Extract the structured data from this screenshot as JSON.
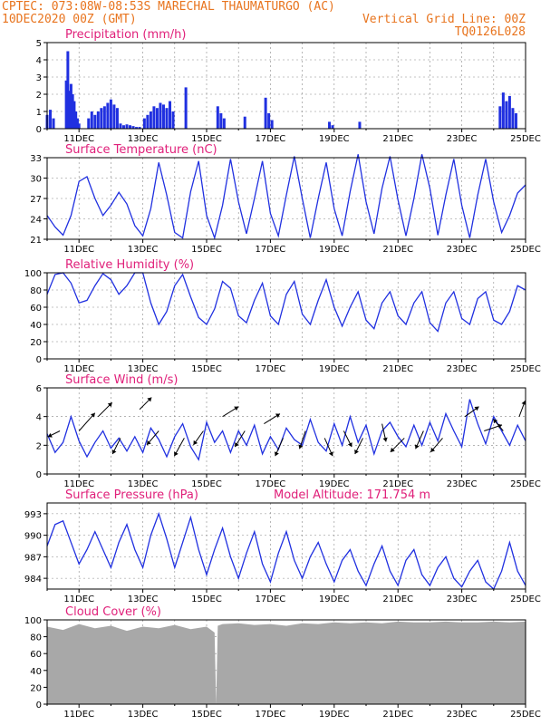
{
  "header": {
    "line1_left": "CPTEC:   073:08W-08:53S  MARECHAL THAUMATURGO (AC)",
    "line2_left": "10DEC2020 00Z (GMT)",
    "line2_right": "Vertical Grid Line: 00Z",
    "line3_right": "TQ0126L028"
  },
  "colors": {
    "header": "#e8741e",
    "title": "#e0207a",
    "series": "#2030e0",
    "cloud": "#a8a8a8",
    "grid": "#888888"
  },
  "chart_data": [
    {
      "type": "bar",
      "title": "Precipitation (mm/h)",
      "ylim": [
        0,
        5
      ],
      "yticks": [
        "0",
        "1",
        "2",
        "3",
        "4",
        "5"
      ],
      "xticks": [
        "11DEC",
        "13DEC",
        "15DEC",
        "17DEC",
        "19DEC",
        "21DEC",
        "23DEC",
        "25DEC"
      ],
      "series": [
        {
          "x": [
            0.0,
            0.1,
            0.2,
            0.3,
            0.4,
            0.5,
            0.6,
            0.7,
            0.8
          ],
          "values": [
            0.8,
            1.1,
            0.6,
            0,
            0,
            0,
            0,
            0,
            0
          ]
        },
        {
          "x": [
            0.6,
            0.65,
            0.7,
            0.75,
            0.8,
            0.85,
            0.9,
            0.95,
            1.0
          ],
          "values": [
            2.8,
            4.5,
            2.2,
            2.6,
            2.0,
            1.6,
            1.0,
            0.6,
            0.3
          ]
        },
        {
          "x": [
            1.3,
            1.4,
            1.5,
            1.6,
            1.7,
            1.8,
            1.9,
            2.0,
            2.1,
            2.2
          ],
          "values": [
            0.6,
            1.0,
            0.8,
            1.0,
            1.2,
            1.3,
            1.5,
            1.7,
            1.4,
            1.2
          ]
        },
        {
          "x": [
            2.3,
            2.4,
            2.5,
            2.6,
            2.7,
            2.8,
            2.9
          ],
          "values": [
            0.3,
            0.2,
            0.25,
            0.2,
            0.15,
            0.1,
            0.1
          ]
        },
        {
          "x": [
            3.05,
            3.15,
            3.25,
            3.35,
            3.45,
            3.55,
            3.65,
            3.75,
            3.85,
            3.95
          ],
          "values": [
            0.6,
            0.8,
            1.0,
            1.3,
            1.2,
            1.5,
            1.4,
            1.2,
            1.6,
            1.0
          ]
        },
        {
          "x": [
            4.35
          ],
          "values": [
            2.4
          ]
        },
        {
          "x": [
            5.35,
            5.45,
            5.55
          ],
          "values": [
            1.3,
            0.9,
            0.6
          ]
        },
        {
          "x": [
            6.2
          ],
          "values": [
            0.7
          ]
        },
        {
          "x": [
            6.85,
            6.95,
            7.05
          ],
          "values": [
            1.8,
            0.9,
            0.5
          ]
        },
        {
          "x": [
            8.85,
            8.95
          ],
          "values": [
            0.4,
            0.2
          ]
        },
        {
          "x": [
            9.8
          ],
          "values": [
            0.4
          ]
        },
        {
          "x": [
            14.2,
            14.3,
            14.4,
            14.5,
            14.6,
            14.7
          ],
          "values": [
            1.3,
            2.1,
            1.6,
            1.9,
            1.2,
            0.9
          ]
        }
      ]
    },
    {
      "type": "line",
      "title": "Surface Temperature (nC)",
      "ylim": [
        21,
        33
      ],
      "yticks": [
        "21",
        "24",
        "27",
        "30",
        "33"
      ],
      "xticks": [
        "11DEC",
        "13DEC",
        "15DEC",
        "17DEC",
        "19DEC",
        "21DEC",
        "23DEC",
        "25DEC"
      ],
      "x": [
        0.0,
        0.25,
        0.5,
        0.75,
        1.0,
        1.25,
        1.5,
        1.75,
        2.0,
        2.25,
        2.5,
        2.75,
        3.0,
        3.25,
        3.5,
        3.75,
        4.0,
        4.25,
        4.5,
        4.75,
        5.0,
        5.25,
        5.5,
        5.75,
        6.0,
        6.25,
        6.5,
        6.75,
        7.0,
        7.25,
        7.5,
        7.75,
        8.0,
        8.25,
        8.5,
        8.75,
        9.0,
        9.25,
        9.5,
        9.75,
        10.0,
        10.25,
        10.5,
        10.75,
        11.0,
        11.25,
        11.5,
        11.75,
        12.0,
        12.25,
        12.5,
        12.75,
        13.0,
        13.25,
        13.5,
        13.75,
        14.0,
        14.25,
        14.5,
        14.75,
        15.0
      ],
      "series": [
        {
          "values": [
            24.5,
            22.8,
            21.6,
            24.5,
            29.5,
            30.2,
            27.0,
            24.5,
            26.0,
            27.9,
            26.2,
            23.0,
            21.5,
            25.5,
            32.3,
            27.5,
            22.0,
            21.2,
            28.0,
            32.5,
            24.5,
            21.2,
            26.0,
            32.8,
            26.5,
            21.8,
            27.0,
            32.5,
            24.8,
            21.5,
            27.5,
            33.2,
            27.0,
            21.2,
            27.0,
            32.3,
            25.5,
            21.5,
            28.0,
            33.5,
            26.5,
            21.8,
            28.5,
            33.2,
            26.8,
            21.5,
            27.0,
            33.5,
            28.5,
            21.6,
            27.5,
            32.8,
            26.0,
            21.2,
            27.5,
            32.8,
            26.5,
            22.0,
            24.5,
            27.8,
            29.0
          ]
        }
      ]
    },
    {
      "type": "line",
      "title": "Relative Humidity (%)",
      "ylim": [
        0,
        100
      ],
      "yticks": [
        "0",
        "20",
        "40",
        "60",
        "80",
        "100"
      ],
      "xticks": [
        "11DEC",
        "13DEC",
        "15DEC",
        "17DEC",
        "19DEC",
        "21DEC",
        "23DEC",
        "25DEC"
      ],
      "x": [
        0.0,
        0.25,
        0.5,
        0.75,
        1.0,
        1.25,
        1.5,
        1.75,
        2.0,
        2.25,
        2.5,
        2.75,
        3.0,
        3.25,
        3.5,
        3.75,
        4.0,
        4.25,
        4.5,
        4.75,
        5.0,
        5.25,
        5.5,
        5.75,
        6.0,
        6.25,
        6.5,
        6.75,
        7.0,
        7.25,
        7.5,
        7.75,
        8.0,
        8.25,
        8.5,
        8.75,
        9.0,
        9.25,
        9.5,
        9.75,
        10.0,
        10.25,
        10.5,
        10.75,
        11.0,
        11.25,
        11.5,
        11.75,
        12.0,
        12.25,
        12.5,
        12.75,
        13.0,
        13.25,
        13.5,
        13.75,
        14.0,
        14.25,
        14.5,
        14.75,
        15.0
      ],
      "series": [
        {
          "values": [
            75,
            98,
            100,
            88,
            65,
            68,
            85,
            99,
            92,
            75,
            85,
            100,
            100,
            65,
            40,
            55,
            85,
            98,
            72,
            48,
            40,
            58,
            90,
            82,
            50,
            42,
            68,
            88,
            50,
            40,
            75,
            90,
            52,
            40,
            68,
            92,
            60,
            38,
            60,
            78,
            45,
            35,
            65,
            78,
            50,
            40,
            65,
            78,
            42,
            32,
            65,
            78,
            47,
            40,
            70,
            78,
            45,
            40,
            55,
            85,
            80
          ]
        }
      ]
    },
    {
      "type": "line",
      "title": "Surface Wind (m/s)",
      "ylim": [
        0,
        6
      ],
      "yticks": [
        "0",
        "2",
        "4",
        "6"
      ],
      "xticks": [
        "11DEC",
        "13DEC",
        "15DEC",
        "17DEC",
        "19DEC",
        "21DEC",
        "23DEC",
        "25DEC"
      ],
      "x": [
        0.0,
        0.25,
        0.5,
        0.75,
        1.0,
        1.25,
        1.5,
        1.75,
        2.0,
        2.25,
        2.5,
        2.75,
        3.0,
        3.25,
        3.5,
        3.75,
        4.0,
        4.25,
        4.5,
        4.75,
        5.0,
        5.25,
        5.5,
        5.75,
        6.0,
        6.25,
        6.5,
        6.75,
        7.0,
        7.25,
        7.5,
        7.75,
        8.0,
        8.25,
        8.5,
        8.75,
        9.0,
        9.25,
        9.5,
        9.75,
        10.0,
        10.25,
        10.5,
        10.75,
        11.0,
        11.25,
        11.5,
        11.75,
        12.0,
        12.25,
        12.5,
        12.75,
        13.0,
        13.25,
        13.5,
        13.75,
        14.0,
        14.25,
        14.5,
        14.75,
        15.0
      ],
      "series": [
        {
          "values": [
            2.8,
            1.5,
            2.2,
            4.0,
            2.3,
            1.2,
            2.2,
            3.0,
            1.8,
            2.5,
            1.6,
            2.6,
            1.5,
            3.2,
            2.4,
            1.2,
            2.6,
            3.5,
            1.9,
            1.0,
            3.6,
            2.2,
            3.0,
            1.5,
            3.0,
            2.0,
            3.4,
            1.4,
            2.6,
            1.7,
            3.2,
            2.4,
            2.0,
            3.8,
            2.2,
            1.6,
            3.5,
            2.0,
            4.0,
            2.2,
            3.4,
            1.4,
            3.0,
            3.6,
            2.6,
            1.9,
            3.4,
            2.0,
            3.6,
            2.3,
            4.2,
            3.0,
            1.9,
            5.2,
            3.5,
            2.1,
            4.0,
            3.0,
            2.0,
            3.4,
            2.3
          ]
        }
      ],
      "vectors": {
        "x": [
          0.4,
          1.0,
          1.6,
          2.3,
          2.9,
          3.5,
          4.3,
          4.9,
          5.5,
          6.2,
          6.8,
          7.4,
          8.1,
          8.7,
          9.3,
          9.9,
          10.5,
          11.2,
          11.8,
          12.4,
          13.1,
          13.7,
          14.3,
          14.8
        ],
        "y": [
          3.0,
          3.0,
          4.0,
          2.5,
          4.5,
          3.0,
          2.5,
          3.0,
          4.0,
          3.0,
          3.5,
          2.5,
          3.0,
          2.5,
          3.0,
          2.5,
          3.5,
          2.5,
          3.0,
          2.5,
          4.0,
          3.0,
          3.0,
          4.0
        ],
        "u": [
          -0.6,
          0.8,
          0.7,
          -0.4,
          0.6,
          -0.6,
          -0.5,
          -0.5,
          0.8,
          -0.5,
          0.8,
          -0.4,
          -0.3,
          0.4,
          0.4,
          -0.4,
          0.2,
          -0.7,
          -0.4,
          -0.6,
          0.7,
          0.9,
          -0.5,
          0.3
        ],
        "v": [
          -0.3,
          0.9,
          0.7,
          -0.8,
          0.6,
          -0.7,
          -0.9,
          -0.7,
          0.5,
          -0.8,
          0.5,
          -0.9,
          -0.9,
          -0.9,
          -0.8,
          -0.8,
          -0.9,
          -0.7,
          -0.9,
          -0.7,
          0.5,
          0.3,
          0.6,
          0.8
        ]
      }
    },
    {
      "type": "line",
      "title": "Surface Pressure (hPa)",
      "annotation": "Model Altitude: 171.754 m",
      "ylim": [
        982.5,
        994.5
      ],
      "yticks": [
        "984",
        "987",
        "990",
        "993"
      ],
      "xticks": [
        "11DEC",
        "13DEC",
        "15DEC",
        "17DEC",
        "19DEC",
        "21DEC",
        "23DEC",
        "25DEC"
      ],
      "x": [
        0.0,
        0.25,
        0.5,
        0.75,
        1.0,
        1.25,
        1.5,
        1.75,
        2.0,
        2.25,
        2.5,
        2.75,
        3.0,
        3.25,
        3.5,
        3.75,
        4.0,
        4.25,
        4.5,
        4.75,
        5.0,
        5.25,
        5.5,
        5.75,
        6.0,
        6.25,
        6.5,
        6.75,
        7.0,
        7.25,
        7.5,
        7.75,
        8.0,
        8.25,
        8.5,
        8.75,
        9.0,
        9.25,
        9.5,
        9.75,
        10.0,
        10.25,
        10.5,
        10.75,
        11.0,
        11.25,
        11.5,
        11.75,
        12.0,
        12.25,
        12.5,
        12.75,
        13.0,
        13.25,
        13.5,
        13.75,
        14.0,
        14.25,
        14.5,
        14.75,
        15.0
      ],
      "series": [
        {
          "values": [
            988.5,
            991.5,
            992.0,
            989.0,
            986.0,
            988.0,
            990.5,
            988.0,
            985.5,
            989.0,
            991.5,
            988.0,
            985.5,
            990.0,
            993.0,
            989.5,
            985.5,
            989.0,
            992.5,
            988.0,
            984.5,
            988.0,
            991.0,
            987.0,
            984.0,
            987.5,
            990.5,
            986.0,
            983.5,
            987.5,
            990.5,
            986.5,
            984.0,
            987.0,
            989.0,
            986.0,
            983.5,
            986.5,
            988.0,
            985.0,
            983.0,
            986.0,
            988.5,
            985.0,
            983.0,
            986.5,
            988.0,
            984.5,
            983.0,
            985.5,
            987.0,
            984.0,
            982.8,
            985.0,
            986.5,
            983.5,
            982.5,
            985.0,
            989.0,
            985.0,
            983.0
          ]
        }
      ]
    },
    {
      "type": "area",
      "title": "Cloud Cover (%)",
      "ylim": [
        0,
        100
      ],
      "yticks": [
        "0",
        "20",
        "40",
        "60",
        "80",
        "100"
      ],
      "xticks": [
        "11DEC",
        "13DEC",
        "15DEC",
        "17DEC",
        "19DEC",
        "21DEC",
        "23DEC",
        "25DEC"
      ],
      "x": [
        0.0,
        0.5,
        1.0,
        1.5,
        2.0,
        2.5,
        3.0,
        3.5,
        4.0,
        4.5,
        5.0,
        5.25,
        5.3,
        5.35,
        5.5,
        6.0,
        6.5,
        7.0,
        7.5,
        8.0,
        8.5,
        9.0,
        9.5,
        10.0,
        10.5,
        11.0,
        11.5,
        12.0,
        12.5,
        13.0,
        13.5,
        14.0,
        14.5,
        15.0
      ],
      "series": [
        {
          "values": [
            92,
            88,
            95,
            90,
            93,
            87,
            92,
            90,
            94,
            89,
            92,
            85,
            0,
            93,
            95,
            96,
            94,
            95,
            93,
            96,
            95,
            97,
            96,
            97,
            96,
            98,
            97,
            97,
            98,
            97,
            97,
            98,
            97,
            98
          ]
        }
      ]
    }
  ]
}
